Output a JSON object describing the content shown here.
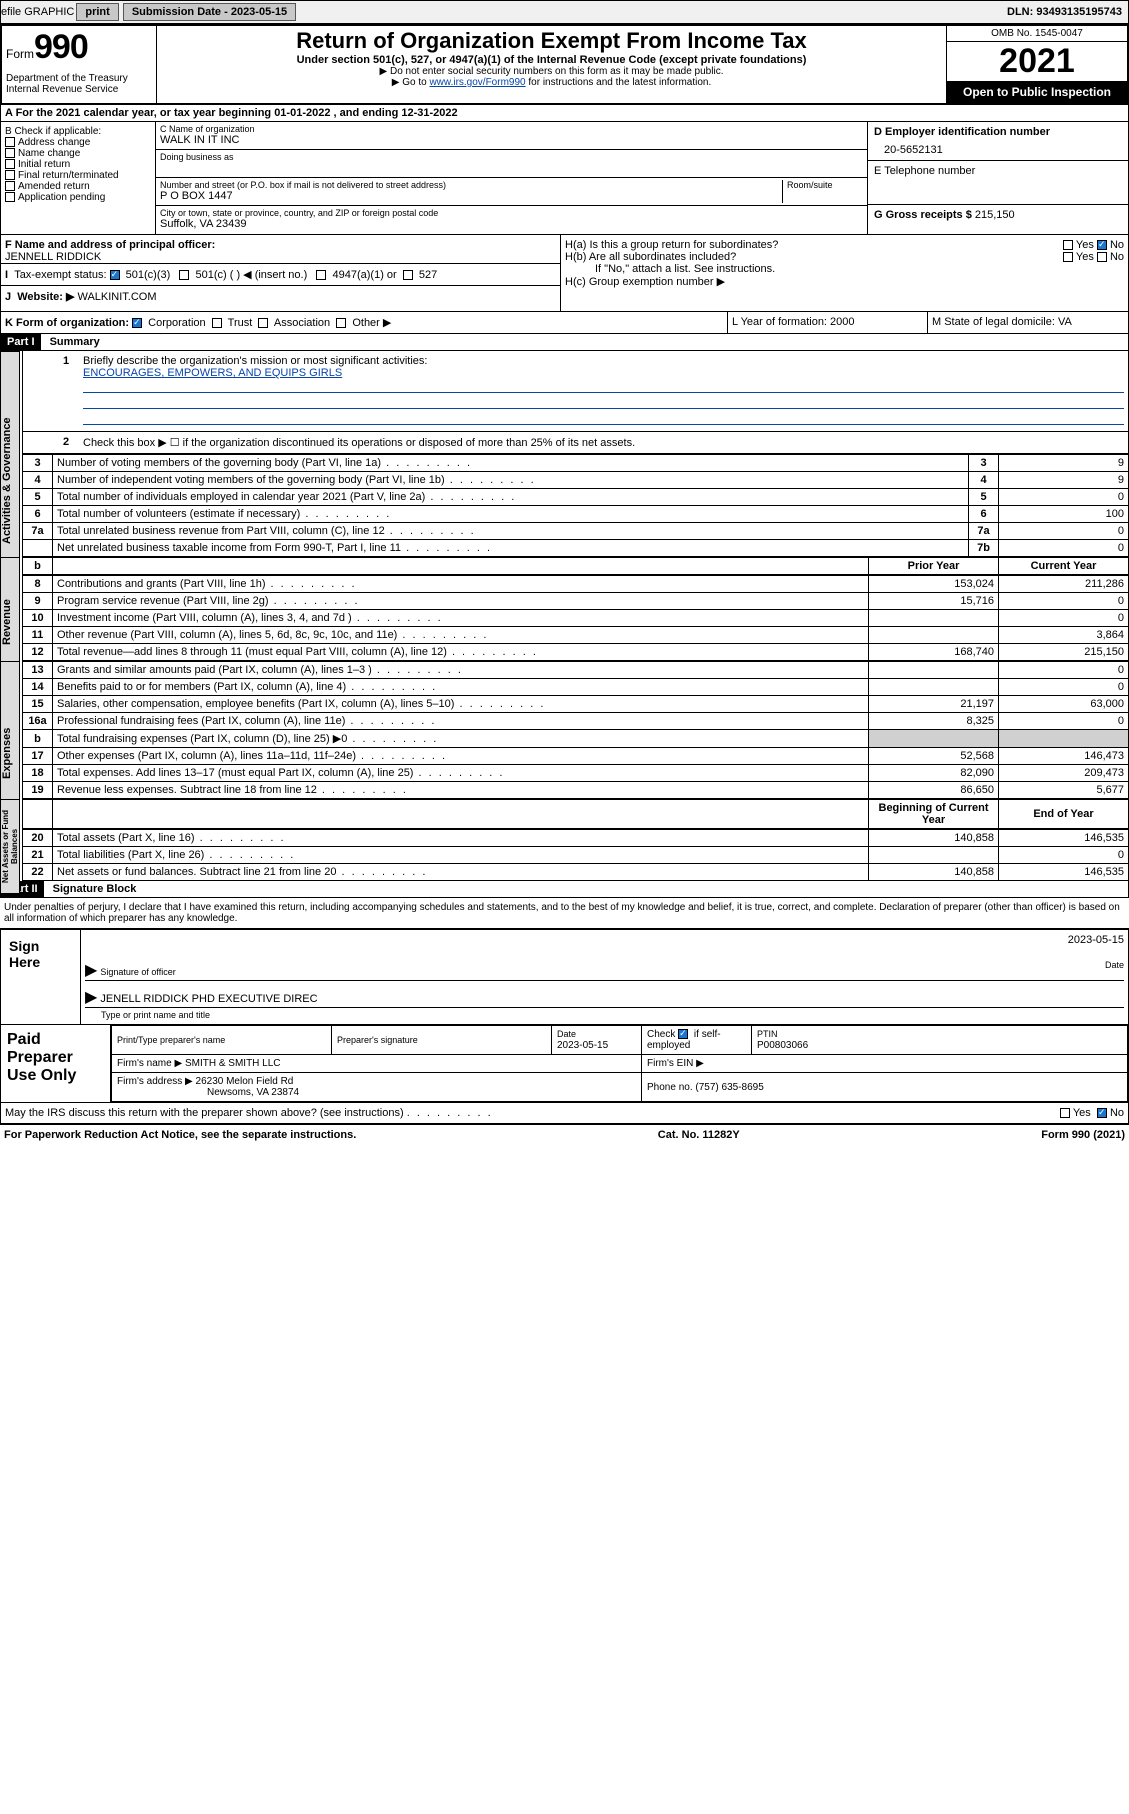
{
  "topbar": {
    "efile": "efile GRAPHIC",
    "print": "print",
    "sub_label": "Submission Date - 2023-05-15",
    "dln": "DLN: 93493135195743"
  },
  "header": {
    "form_word": "Form",
    "form_num": "990",
    "dept": "Department of the Treasury Internal Revenue Service",
    "title": "Return of Organization Exempt From Income Tax",
    "subtitle": "Under section 501(c), 527, or 4947(a)(1) of the Internal Revenue Code (except private foundations)",
    "note1": "▶ Do not enter social security numbers on this form as it may be made public.",
    "note2_pre": "▶ Go to ",
    "note2_link": "www.irs.gov/Form990",
    "note2_post": " for instructions and the latest information.",
    "omb": "OMB No. 1545-0047",
    "year": "2021",
    "open_pub": "Open to Public Inspection"
  },
  "rowA": "A For the 2021 calendar year, or tax year beginning 01-01-2022   , and ending 12-31-2022",
  "colB": {
    "title": "B Check if applicable:",
    "opts": [
      "Address change",
      "Name change",
      "Initial return",
      "Final return/terminated",
      "Amended return",
      "Application pending"
    ]
  },
  "colC": {
    "name_lbl": "C Name of organization",
    "name": "WALK IN IT INC",
    "dba_lbl": "Doing business as",
    "addr_lbl": "Number and street (or P.O. box if mail is not delivered to street address)",
    "room_lbl": "Room/suite",
    "addr": "P O BOX 1447",
    "city_lbl": "City or town, state or province, country, and ZIP or foreign postal code",
    "city": "Suffolk, VA  23439"
  },
  "colD": {
    "ein_lbl": "D Employer identification number",
    "ein": "20-5652131",
    "tel_lbl": "E Telephone number",
    "gross_lbl": "G Gross receipts $",
    "gross": "215,150"
  },
  "rowFGH": {
    "f_lbl": "F Name and address of principal officer:",
    "f_name": "JENNELL RIDDICK",
    "ha": "H(a)  Is this a group return for subordinates?",
    "hb": "H(b)  Are all subordinates included?",
    "hb_note": "If \"No,\" attach a list. See instructions.",
    "hc": "H(c)  Group exemption number ▶",
    "yes": "Yes",
    "no": "No",
    "i_lbl": "Tax-exempt status:",
    "i_501c3": "501(c)(3)",
    "i_501c": "501(c) (  ) ◀ (insert no.)",
    "i_4947": "4947(a)(1) or",
    "i_527": "527",
    "j_lbl": "Website: ▶",
    "j_val": "WALKINIT.COM"
  },
  "rowKLM": {
    "k": "K Form of organization:",
    "k_corp": "Corporation",
    "k_trust": "Trust",
    "k_assoc": "Association",
    "k_other": "Other ▶",
    "l": "L Year of formation: 2000",
    "m": "M State of legal domicile: VA"
  },
  "part1": {
    "hdr": "Part I",
    "title": "Summary",
    "l1": "Briefly describe the organization's mission or most significant activities:",
    "mission": "ENCOURAGES, EMPOWERS, AND EQUIPS GIRLS",
    "l2": "Check this box ▶ ☐  if the organization discontinued its operations or disposed of more than 25% of its net assets."
  },
  "vtabs": {
    "gov": "Activities & Governance",
    "rev": "Revenue",
    "exp": "Expenses",
    "net": "Net Assets or Fund Balances"
  },
  "gov_rows": [
    {
      "n": "3",
      "d": "Number of voting members of the governing body (Part VI, line 1a)",
      "l": "3",
      "v": "9"
    },
    {
      "n": "4",
      "d": "Number of independent voting members of the governing body (Part VI, line 1b)",
      "l": "4",
      "v": "9"
    },
    {
      "n": "5",
      "d": "Total number of individuals employed in calendar year 2021 (Part V, line 2a)",
      "l": "5",
      "v": "0"
    },
    {
      "n": "6",
      "d": "Total number of volunteers (estimate if necessary)",
      "l": "6",
      "v": "100"
    },
    {
      "n": "7a",
      "d": "Total unrelated business revenue from Part VIII, column (C), line 12",
      "l": "7a",
      "v": "0"
    },
    {
      "n": "",
      "d": "Net unrelated business taxable income from Form 990-T, Part I, line 11",
      "l": "7b",
      "v": "0"
    }
  ],
  "two_col_hdr": {
    "b": "b",
    "prior": "Prior Year",
    "curr": "Current Year"
  },
  "rev_rows": [
    {
      "n": "8",
      "d": "Contributions and grants (Part VIII, line 1h)",
      "p": "153,024",
      "c": "211,286"
    },
    {
      "n": "9",
      "d": "Program service revenue (Part VIII, line 2g)",
      "p": "15,716",
      "c": "0"
    },
    {
      "n": "10",
      "d": "Investment income (Part VIII, column (A), lines 3, 4, and 7d )",
      "p": "",
      "c": "0"
    },
    {
      "n": "11",
      "d": "Other revenue (Part VIII, column (A), lines 5, 6d, 8c, 9c, 10c, and 11e)",
      "p": "",
      "c": "3,864"
    },
    {
      "n": "12",
      "d": "Total revenue—add lines 8 through 11 (must equal Part VIII, column (A), line 12)",
      "p": "168,740",
      "c": "215,150"
    }
  ],
  "exp_rows": [
    {
      "n": "13",
      "d": "Grants and similar amounts paid (Part IX, column (A), lines 1–3 )",
      "p": "",
      "c": "0"
    },
    {
      "n": "14",
      "d": "Benefits paid to or for members (Part IX, column (A), line 4)",
      "p": "",
      "c": "0"
    },
    {
      "n": "15",
      "d": "Salaries, other compensation, employee benefits (Part IX, column (A), lines 5–10)",
      "p": "21,197",
      "c": "63,000"
    },
    {
      "n": "16a",
      "d": "Professional fundraising fees (Part IX, column (A), line 11e)",
      "p": "8,325",
      "c": "0"
    },
    {
      "n": "b",
      "d": "Total fundraising expenses (Part IX, column (D), line 25) ▶0",
      "p": "shaded",
      "c": "shaded"
    },
    {
      "n": "17",
      "d": "Other expenses (Part IX, column (A), lines 11a–11d, 11f–24e)",
      "p": "52,568",
      "c": "146,473"
    },
    {
      "n": "18",
      "d": "Total expenses. Add lines 13–17 (must equal Part IX, column (A), line 25)",
      "p": "82,090",
      "c": "209,473"
    },
    {
      "n": "19",
      "d": "Revenue less expenses. Subtract line 18 from line 12",
      "p": "86,650",
      "c": "5,677"
    }
  ],
  "net_hdr": {
    "b": "Beginning of Current Year",
    "e": "End of Year"
  },
  "net_rows": [
    {
      "n": "20",
      "d": "Total assets (Part X, line 16)",
      "p": "140,858",
      "c": "146,535"
    },
    {
      "n": "21",
      "d": "Total liabilities (Part X, line 26)",
      "p": "",
      "c": "0"
    },
    {
      "n": "22",
      "d": "Net assets or fund balances. Subtract line 21 from line 20",
      "p": "140,858",
      "c": "146,535"
    }
  ],
  "part2": {
    "hdr": "Part II",
    "title": "Signature Block",
    "decl": "Under penalties of perjury, I declare that I have examined this return, including accompanying schedules and statements, and to the best of my knowledge and belief, it is true, correct, and complete. Declaration of preparer (other than officer) is based on all information of which preparer has any knowledge."
  },
  "sign": {
    "here": "Sign Here",
    "sig_lbl": "Signature of officer",
    "date_lbl": "Date",
    "date": "2023-05-15",
    "name": "JENELL RIDDICK PHD  EXECUTIVE DIREC",
    "name_lbl": "Type or print name and title"
  },
  "prep": {
    "title": "Paid Preparer Use Only",
    "pt_name_lbl": "Print/Type preparer's name",
    "sig_lbl": "Preparer's signature",
    "date_lbl": "Date",
    "date": "2023-05-15",
    "check_lbl": "Check",
    "self_emp": "if self-employed",
    "ptin_lbl": "PTIN",
    "ptin": "P00803066",
    "firm_name_lbl": "Firm's name    ▶",
    "firm_name": "SMITH & SMITH LLC",
    "firm_ein_lbl": "Firm's EIN ▶",
    "firm_addr_lbl": "Firm's address ▶",
    "firm_addr1": "26230 Melon Field Rd",
    "firm_addr2": "Newsoms, VA  23874",
    "phone_lbl": "Phone no.",
    "phone": "(757) 635-8695"
  },
  "may": {
    "q": "May the IRS discuss this return with the preparer shown above? (see instructions)",
    "yes": "Yes",
    "no": "No"
  },
  "footer": {
    "l": "For Paperwork Reduction Act Notice, see the separate instructions.",
    "c": "Cat. No. 11282Y",
    "r": "Form 990 (2021)"
  }
}
